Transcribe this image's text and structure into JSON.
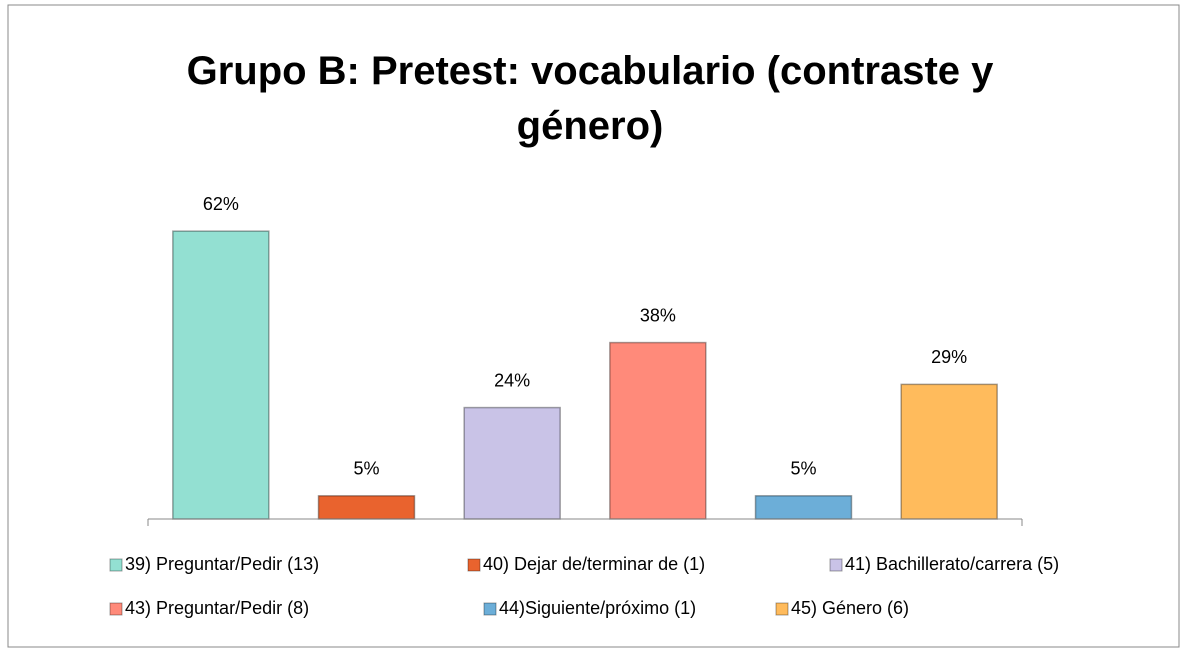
{
  "chart_data": {
    "type": "bar",
    "title": "Grupo B: Pretest: vocabulario (contraste y género)",
    "ylim": [
      0,
      70
    ],
    "series": [
      {
        "name": "39) Preguntar/Pedir (13)",
        "color": "#93e0d2",
        "values": [
          62
        ],
        "value_labels": [
          "62%"
        ]
      },
      {
        "name": "40) Dejar de/terminar de (1)",
        "color": "#e9632e",
        "values": [
          5
        ],
        "value_labels": [
          "5%"
        ]
      },
      {
        "name": "41) Bachillerato/carrera (5)",
        "color": "#c9c3e7",
        "values": [
          24
        ],
        "value_labels": [
          "24%"
        ]
      },
      {
        "name": "43) Preguntar/Pedir (8)",
        "color": "#ff8a7a",
        "values": [
          38
        ],
        "value_labels": [
          "38%"
        ]
      },
      {
        "name": "44)Siguiente/próximo (1)",
        "color": "#6caed8",
        "values": [
          5
        ],
        "value_labels": [
          "5%"
        ]
      },
      {
        "name": "45) Género (6)",
        "color": "#ffbb5c",
        "values": [
          29
        ],
        "value_labels": [
          "29%"
        ]
      }
    ]
  }
}
